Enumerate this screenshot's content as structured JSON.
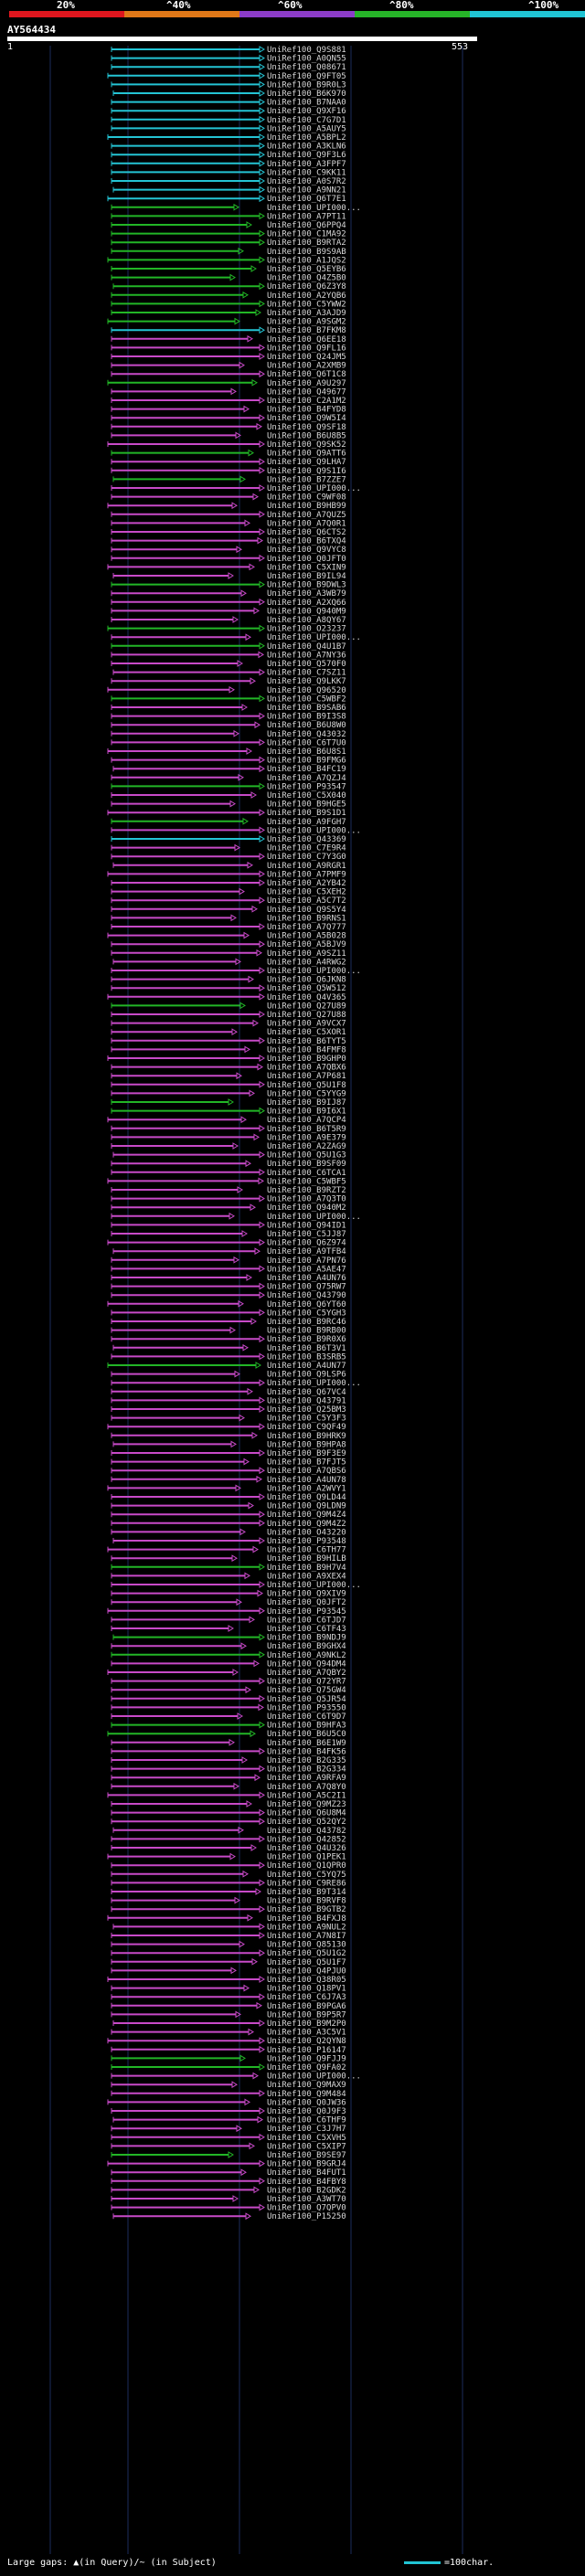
{
  "header": {
    "percent_labels": [
      "20%",
      "^40%",
      "^60%",
      "^80%",
      "^100%"
    ],
    "colorbar": [
      "#e0161e",
      "#e07818",
      "#8c3cc8",
      "#26b428",
      "#20c4d4"
    ],
    "query_id": "AY564434",
    "scale_start": "1",
    "scale_end": "553"
  },
  "hit_colors": {
    "cyan": "#24c4d4",
    "green": "#22b626",
    "magenta": "#c84ac8",
    "grid": "#1c2c5c"
  },
  "footer": {
    "gaps_text": "Large gaps: ▲(in Query)/~ (in Subject)",
    "legend_text": "=100char."
  },
  "hits": [
    {
      "id": "UniRef100_Q9S881",
      "c": "cyan"
    },
    {
      "id": "UniRef100_A0QN55",
      "c": "cyan"
    },
    {
      "id": "UniRef100_Q08671",
      "c": "cyan"
    },
    {
      "id": "UniRef100_Q9FT05",
      "c": "cyan"
    },
    {
      "id": "UniRef100_B9R0L3",
      "c": "cyan"
    },
    {
      "id": "UniRef100_B6K970",
      "c": "cyan"
    },
    {
      "id": "UniRef100_B7NAA0",
      "c": "cyan"
    },
    {
      "id": "UniRef100_Q9XF16",
      "c": "cyan"
    },
    {
      "id": "UniRef100_C7G7D1",
      "c": "cyan"
    },
    {
      "id": "UniRef100_A5AUY5",
      "c": "cyan"
    },
    {
      "id": "UniRef100_A5BPL2",
      "c": "cyan"
    },
    {
      "id": "UniRef100_A3KLN6",
      "c": "cyan"
    },
    {
      "id": "UniRef100_Q9F3L6",
      "c": "cyan"
    },
    {
      "id": "UniRef100_A3FPF7",
      "c": "cyan"
    },
    {
      "id": "UniRef100_C9KK11",
      "c": "cyan"
    },
    {
      "id": "UniRef100_A0S7R2",
      "c": "cyan"
    },
    {
      "id": "UniRef100_A9NN21",
      "c": "cyan"
    },
    {
      "id": "UniRef100_Q6T7E1",
      "c": "cyan"
    },
    {
      "id": "UniRef100_UPI000...",
      "c": "green"
    },
    {
      "id": "UniRef100_A7PT11",
      "c": "green"
    },
    {
      "id": "UniRef100_Q6PPQ4",
      "c": "green"
    },
    {
      "id": "UniRef100_C1MA92",
      "c": "green"
    },
    {
      "id": "UniRef100_B9RTA2",
      "c": "green"
    },
    {
      "id": "UniRef100_B9S9AB",
      "c": "green"
    },
    {
      "id": "UniRef100_A1JQS2",
      "c": "green"
    },
    {
      "id": "UniRef100_Q5EYB6",
      "c": "green"
    },
    {
      "id": "UniRef100_Q4Z5B0",
      "c": "green"
    },
    {
      "id": "UniRef100_Q6Z3Y8",
      "c": "green"
    },
    {
      "id": "UniRef100_A2YQB6",
      "c": "green"
    },
    {
      "id": "UniRef100_C5YWW2",
      "c": "green"
    },
    {
      "id": "UniRef100_A3AJD9",
      "c": "green"
    },
    {
      "id": "UniRef100_A9SGM2",
      "c": "green"
    },
    {
      "id": "UniRef100_B7FKM8",
      "c": "cyan"
    },
    {
      "id": "UniRef100_Q6EE18",
      "c": "magenta"
    },
    {
      "id": "UniRef100_Q9FL16",
      "c": "magenta"
    },
    {
      "id": "UniRef100_Q24JM5",
      "c": "magenta"
    },
    {
      "id": "UniRef100_A2XMB9",
      "c": "magenta"
    },
    {
      "id": "UniRef100_Q6T1C8",
      "c": "magenta"
    },
    {
      "id": "UniRef100_A9U297",
      "c": "green"
    },
    {
      "id": "UniRef100_Q49677",
      "c": "magenta"
    },
    {
      "id": "UniRef100_C2A1M2",
      "c": "magenta"
    },
    {
      "id": "UniRef100_B4FYD8",
      "c": "magenta"
    },
    {
      "id": "UniRef100_Q9W5I4",
      "c": "magenta"
    },
    {
      "id": "UniRef100_Q9SF18",
      "c": "magenta"
    },
    {
      "id": "UniRef100_B6U8B5",
      "c": "magenta"
    },
    {
      "id": "UniRef100_Q9SK52",
      "c": "magenta"
    },
    {
      "id": "UniRef100_Q9ATT6",
      "c": "green"
    },
    {
      "id": "UniRef100_Q9LHA7",
      "c": "magenta"
    },
    {
      "id": "UniRef100_Q9S1I6",
      "c": "magenta"
    },
    {
      "id": "UniRef100_B7ZZE7",
      "c": "green"
    },
    {
      "id": "UniRef100_UPI000...",
      "c": "magenta"
    },
    {
      "id": "UniRef100_C9WF08",
      "c": "magenta"
    },
    {
      "id": "UniRef100_B9HB99",
      "c": "magenta"
    },
    {
      "id": "UniRef100_A7QUZ5",
      "c": "magenta"
    },
    {
      "id": "UniRef100_A7Q0R1",
      "c": "magenta"
    },
    {
      "id": "UniRef100_Q6CTS2",
      "c": "magenta"
    },
    {
      "id": "UniRef100_B6TXQ4",
      "c": "magenta"
    },
    {
      "id": "UniRef100_Q9VYC8",
      "c": "magenta"
    },
    {
      "id": "UniRef100_Q0JFT0",
      "c": "magenta"
    },
    {
      "id": "UniRef100_C5XIN9",
      "c": "magenta"
    },
    {
      "id": "UniRef100_B9IL94",
      "c": "magenta"
    },
    {
      "id": "UniRef100_B9DWL3",
      "c": "green"
    },
    {
      "id": "UniRef100_A3WB79",
      "c": "magenta"
    },
    {
      "id": "UniRef100_A2XQ66",
      "c": "magenta"
    },
    {
      "id": "UniRef100_Q940M9",
      "c": "magenta"
    },
    {
      "id": "UniRef100_A8QY67",
      "c": "magenta"
    },
    {
      "id": "UniRef100_O23237",
      "c": "green"
    },
    {
      "id": "UniRef100_UPI000...",
      "c": "magenta"
    },
    {
      "id": "UniRef100_Q4U1B7",
      "c": "green"
    },
    {
      "id": "UniRef100_A7NY36",
      "c": "magenta"
    },
    {
      "id": "UniRef100_Q570F0",
      "c": "magenta"
    },
    {
      "id": "UniRef100_C7SZ11",
      "c": "magenta"
    },
    {
      "id": "UniRef100_Q9LKK7",
      "c": "magenta"
    },
    {
      "id": "UniRef100_Q96520",
      "c": "magenta"
    },
    {
      "id": "UniRef100_C5WBF2",
      "c": "green"
    },
    {
      "id": "UniRef100_B9SAB6",
      "c": "magenta"
    },
    {
      "id": "UniRef100_B9I3S8",
      "c": "magenta"
    },
    {
      "id": "UniRef100_B6U8W0",
      "c": "magenta"
    },
    {
      "id": "UniRef100_Q43032",
      "c": "magenta"
    },
    {
      "id": "UniRef100_C6T7U0",
      "c": "magenta"
    },
    {
      "id": "UniRef100_B6U8S1",
      "c": "magenta"
    },
    {
      "id": "UniRef100_B9FMG6",
      "c": "magenta"
    },
    {
      "id": "UniRef100_B4FC19",
      "c": "magenta"
    },
    {
      "id": "UniRef100_A7QZJ4",
      "c": "magenta"
    },
    {
      "id": "UniRef100_P93547",
      "c": "green"
    },
    {
      "id": "UniRef100_C5X040",
      "c": "magenta"
    },
    {
      "id": "UniRef100_B9HGE5",
      "c": "magenta"
    },
    {
      "id": "UniRef100_B9S1D1",
      "c": "magenta"
    },
    {
      "id": "UniRef100_A9FGH7",
      "c": "green"
    },
    {
      "id": "UniRef100_UPI000...",
      "c": "magenta"
    },
    {
      "id": "UniRef100_Q43369",
      "c": "cyan"
    },
    {
      "id": "UniRef100_C7E9R4",
      "c": "magenta"
    },
    {
      "id": "UniRef100_C7Y3G0",
      "c": "magenta"
    },
    {
      "id": "UniRef100_A9RGR1",
      "c": "magenta"
    },
    {
      "id": "UniRef100_A7PMF9",
      "c": "magenta"
    },
    {
      "id": "UniRef100_A2YB42",
      "c": "magenta"
    },
    {
      "id": "UniRef100_C5XEH2",
      "c": "magenta"
    },
    {
      "id": "UniRef100_A5C7T2",
      "c": "magenta"
    },
    {
      "id": "UniRef100_Q9S5Y4",
      "c": "magenta"
    },
    {
      "id": "UniRef100_B9RNS1",
      "c": "magenta"
    },
    {
      "id": "UniRef100_A7Q777",
      "c": "magenta"
    },
    {
      "id": "UniRef100_A5B028",
      "c": "magenta"
    },
    {
      "id": "UniRef100_A5BJV9",
      "c": "magenta"
    },
    {
      "id": "UniRef100_A9SZ11",
      "c": "magenta"
    },
    {
      "id": "UniRef100_A4RWG2",
      "c": "magenta"
    },
    {
      "id": "UniRef100_UPI000...",
      "c": "magenta"
    },
    {
      "id": "UniRef100_Q6JKN8",
      "c": "magenta"
    },
    {
      "id": "UniRef100_Q5W512",
      "c": "magenta"
    },
    {
      "id": "UniRef100_Q4V365",
      "c": "magenta"
    },
    {
      "id": "UniRef100_Q27U89",
      "c": "green"
    },
    {
      "id": "UniRef100_Q27U88",
      "c": "magenta"
    },
    {
      "id": "UniRef100_A9VCX7",
      "c": "magenta"
    },
    {
      "id": "UniRef100_C5XOR1",
      "c": "magenta"
    },
    {
      "id": "UniRef100_B6TYT5",
      "c": "magenta"
    },
    {
      "id": "UniRef100_B4FMF8",
      "c": "magenta"
    },
    {
      "id": "UniRef100_B9GHP0",
      "c": "magenta"
    },
    {
      "id": "UniRef100_A7QBX6",
      "c": "magenta"
    },
    {
      "id": "UniRef100_A7P681",
      "c": "magenta"
    },
    {
      "id": "UniRef100_Q5U1F8",
      "c": "magenta"
    },
    {
      "id": "UniRef100_C5YYG9",
      "c": "magenta"
    },
    {
      "id": "UniRef100_B9IJ87",
      "c": "green"
    },
    {
      "id": "UniRef100_B9I6X1",
      "c": "green"
    },
    {
      "id": "UniRef100_A7QCP4",
      "c": "magenta"
    },
    {
      "id": "UniRef100_B6T5R9",
      "c": "magenta"
    },
    {
      "id": "UniRef100_A9E379",
      "c": "magenta"
    },
    {
      "id": "UniRef100_A2ZAG9",
      "c": "magenta"
    },
    {
      "id": "UniRef100_Q5U1G3",
      "c": "magenta"
    },
    {
      "id": "UniRef100_B9SF09",
      "c": "magenta"
    },
    {
      "id": "UniRef100_C6TCA1",
      "c": "magenta"
    },
    {
      "id": "UniRef100_C5WBF5",
      "c": "magenta"
    },
    {
      "id": "UniRef100_B9RZT2",
      "c": "magenta"
    },
    {
      "id": "UniRef100_A7Q3T0",
      "c": "magenta"
    },
    {
      "id": "UniRef100_Q940M2",
      "c": "magenta"
    },
    {
      "id": "UniRef100_UPI000...",
      "c": "magenta"
    },
    {
      "id": "UniRef100_Q94ID1",
      "c": "magenta"
    },
    {
      "id": "UniRef100_C5JJ87",
      "c": "magenta"
    },
    {
      "id": "UniRef100_Q6Z974",
      "c": "magenta"
    },
    {
      "id": "UniRef100_A9TFB4",
      "c": "magenta"
    },
    {
      "id": "UniRef100_A7PN76",
      "c": "magenta"
    },
    {
      "id": "UniRef100_A5AE47",
      "c": "magenta"
    },
    {
      "id": "UniRef100_A4UN76",
      "c": "magenta"
    },
    {
      "id": "UniRef100_Q75RW7",
      "c": "magenta"
    },
    {
      "id": "UniRef100_Q43790",
      "c": "magenta"
    },
    {
      "id": "UniRef100_Q6YT60",
      "c": "magenta"
    },
    {
      "id": "UniRef100_C5YGH3",
      "c": "magenta"
    },
    {
      "id": "UniRef100_B9RC46",
      "c": "magenta"
    },
    {
      "id": "UniRef100_B9RB00",
      "c": "magenta"
    },
    {
      "id": "UniRef100_B9R0X6",
      "c": "magenta"
    },
    {
      "id": "UniRef100_B6T3V1",
      "c": "magenta"
    },
    {
      "id": "UniRef100_B3SRB5",
      "c": "magenta"
    },
    {
      "id": "UniRef100_A4UN77",
      "c": "green"
    },
    {
      "id": "UniRef100_Q9LSP6",
      "c": "magenta"
    },
    {
      "id": "UniRef100_UPI000...",
      "c": "magenta"
    },
    {
      "id": "UniRef100_Q67VC4",
      "c": "magenta"
    },
    {
      "id": "UniRef100_Q43791",
      "c": "magenta"
    },
    {
      "id": "UniRef100_Q25BM3",
      "c": "magenta"
    },
    {
      "id": "UniRef100_C5Y3F3",
      "c": "magenta"
    },
    {
      "id": "UniRef100_C9QF49",
      "c": "magenta"
    },
    {
      "id": "UniRef100_B9HRK9",
      "c": "magenta"
    },
    {
      "id": "UniRef100_B9HPA8",
      "c": "magenta"
    },
    {
      "id": "UniRef100_B9F3E9",
      "c": "magenta"
    },
    {
      "id": "UniRef100_B7FJT5",
      "c": "magenta"
    },
    {
      "id": "UniRef100_A7QBS6",
      "c": "magenta"
    },
    {
      "id": "UniRef100_A4UN78",
      "c": "magenta"
    },
    {
      "id": "UniRef100_A2WVY1",
      "c": "magenta"
    },
    {
      "id": "UniRef100_Q9LD44",
      "c": "magenta"
    },
    {
      "id": "UniRef100_Q9LDN9",
      "c": "magenta"
    },
    {
      "id": "UniRef100_Q9M4Z4",
      "c": "magenta"
    },
    {
      "id": "UniRef100_Q9M4Z2",
      "c": "magenta"
    },
    {
      "id": "UniRef100_O43220",
      "c": "magenta"
    },
    {
      "id": "UniRef100_P93548",
      "c": "magenta"
    },
    {
      "id": "UniRef100_C6TH77",
      "c": "magenta"
    },
    {
      "id": "UniRef100_B9HILB",
      "c": "magenta"
    },
    {
      "id": "UniRef100_B9H7V4",
      "c": "green"
    },
    {
      "id": "UniRef100_A9XEX4",
      "c": "magenta"
    },
    {
      "id": "UniRef100_UPI000...",
      "c": "magenta"
    },
    {
      "id": "UniRef100_Q9XIV9",
      "c": "magenta"
    },
    {
      "id": "UniRef100_Q0JFT2",
      "c": "magenta"
    },
    {
      "id": "UniRef100_P93545",
      "c": "magenta"
    },
    {
      "id": "UniRef100_C6TJD7",
      "c": "magenta"
    },
    {
      "id": "UniRef100_C6TF43",
      "c": "magenta"
    },
    {
      "id": "UniRef100_B9NDJ9",
      "c": "green"
    },
    {
      "id": "UniRef100_B9GHX4",
      "c": "magenta"
    },
    {
      "id": "UniRef100_A9NKL2",
      "c": "green"
    },
    {
      "id": "UniRef100_Q94DM4",
      "c": "magenta"
    },
    {
      "id": "UniRef100_A7QBY2",
      "c": "magenta"
    },
    {
      "id": "UniRef100_Q72YR7",
      "c": "magenta"
    },
    {
      "id": "UniRef100_Q75GW4",
      "c": "magenta"
    },
    {
      "id": "UniRef100_Q5JR54",
      "c": "magenta"
    },
    {
      "id": "UniRef100_P93550",
      "c": "magenta"
    },
    {
      "id": "UniRef100_C6T9D7",
      "c": "magenta"
    },
    {
      "id": "UniRef100_B9HFA3",
      "c": "green"
    },
    {
      "id": "UniRef100_B6U5C0",
      "c": "green"
    },
    {
      "id": "UniRef100_B6E1W9",
      "c": "magenta"
    },
    {
      "id": "UniRef100_B4FK56",
      "c": "magenta"
    },
    {
      "id": "UniRef100_B2G335",
      "c": "magenta"
    },
    {
      "id": "UniRef100_B2G334",
      "c": "magenta"
    },
    {
      "id": "UniRef100_A9RFA9",
      "c": "magenta"
    },
    {
      "id": "UniRef100_A7Q8Y0",
      "c": "magenta"
    },
    {
      "id": "UniRef100_A5C2I1",
      "c": "magenta"
    },
    {
      "id": "UniRef100_Q9MZ23",
      "c": "magenta"
    },
    {
      "id": "UniRef100_Q6U8M4",
      "c": "magenta"
    },
    {
      "id": "UniRef100_Q52QY2",
      "c": "magenta"
    },
    {
      "id": "UniRef100_Q43782",
      "c": "magenta"
    },
    {
      "id": "UniRef100_Q42852",
      "c": "magenta"
    },
    {
      "id": "UniRef100_Q4U326",
      "c": "magenta"
    },
    {
      "id": "UniRef100_Q1PEK1",
      "c": "magenta"
    },
    {
      "id": "UniRef100_Q1QPR0",
      "c": "magenta"
    },
    {
      "id": "UniRef100_C5YQ75",
      "c": "magenta"
    },
    {
      "id": "UniRef100_C9RE86",
      "c": "magenta"
    },
    {
      "id": "UniRef100_B9T314",
      "c": "magenta"
    },
    {
      "id": "UniRef100_B9RVF8",
      "c": "magenta"
    },
    {
      "id": "UniRef100_B9GTB2",
      "c": "magenta"
    },
    {
      "id": "UniRef100_B4FXJ8",
      "c": "magenta"
    },
    {
      "id": "UniRef100_A9NUL2",
      "c": "magenta"
    },
    {
      "id": "UniRef100_A7N8I7",
      "c": "magenta"
    },
    {
      "id": "UniRef100_Q85130",
      "c": "magenta"
    },
    {
      "id": "UniRef100_Q5U1G2",
      "c": "magenta"
    },
    {
      "id": "UniRef100_Q5U1F7",
      "c": "magenta"
    },
    {
      "id": "UniRef100_Q4PJU0",
      "c": "magenta"
    },
    {
      "id": "UniRef100_Q38R05",
      "c": "magenta"
    },
    {
      "id": "UniRef100_Q18PV1",
      "c": "magenta"
    },
    {
      "id": "UniRef100_C6J7A3",
      "c": "magenta"
    },
    {
      "id": "UniRef100_B9PGA6",
      "c": "magenta"
    },
    {
      "id": "UniRef100_B9P5R7",
      "c": "magenta"
    },
    {
      "id": "UniRef100_B9M2P0",
      "c": "magenta"
    },
    {
      "id": "UniRef100_A3C5V1",
      "c": "magenta"
    },
    {
      "id": "UniRef100_Q2QYN8",
      "c": "magenta"
    },
    {
      "id": "UniRef100_P16147",
      "c": "magenta"
    },
    {
      "id": "UniRef100_Q9FJJ9",
      "c": "green"
    },
    {
      "id": "UniRef100_Q9FA02",
      "c": "green"
    },
    {
      "id": "UniRef100_UPI000...",
      "c": "magenta"
    },
    {
      "id": "UniRef100_Q9MAX9",
      "c": "magenta"
    },
    {
      "id": "UniRef100_Q9M484",
      "c": "magenta"
    },
    {
      "id": "UniRef100_Q0JW36",
      "c": "magenta"
    },
    {
      "id": "UniRef100_Q0J9F3",
      "c": "magenta"
    },
    {
      "id": "UniRef100_C6THF9",
      "c": "magenta"
    },
    {
      "id": "UniRef100_C3J7H7",
      "c": "magenta"
    },
    {
      "id": "UniRef100_C5XVH5",
      "c": "magenta"
    },
    {
      "id": "UniRef100_C5XIP7",
      "c": "magenta"
    },
    {
      "id": "UniRef100_B9SE97",
      "c": "green"
    },
    {
      "id": "UniRef100_B9GRJ4",
      "c": "magenta"
    },
    {
      "id": "UniRef100_B4FUT1",
      "c": "magenta"
    },
    {
      "id": "UniRef100_B4FBY8",
      "c": "magenta"
    },
    {
      "id": "UniRef100_B2GDK2",
      "c": "magenta"
    },
    {
      "id": "UniRef100_A3WT70",
      "c": "magenta"
    },
    {
      "id": "UniRef100_Q7QPV0",
      "c": "magenta"
    },
    {
      "id": "UniRef100_P15250",
      "c": "magenta"
    }
  ]
}
